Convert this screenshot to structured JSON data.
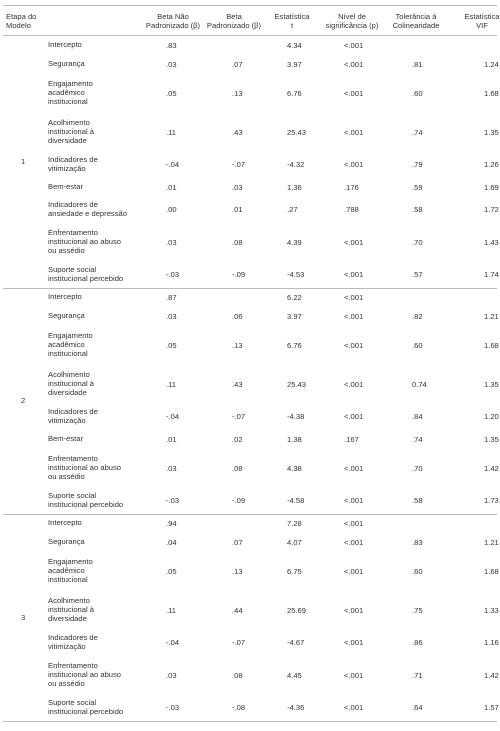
{
  "header": {
    "etapa": [
      "Etapa do",
      "Modelo"
    ],
    "beta_np": [
      "Beta Não",
      "Padronizado (β)"
    ],
    "beta_p": [
      "Beta",
      "Padronizado (β)"
    ],
    "t": [
      "Estatística",
      "t"
    ],
    "sig": [
      "Nível de",
      "significância (p)"
    ],
    "tol": [
      "Tolerância à",
      "Colinearidade"
    ],
    "vif": [
      "Estatística",
      "VIF"
    ]
  },
  "models": [
    {
      "label": "1",
      "rows": [
        {
          "variable": [
            "Intercepto"
          ],
          "cells": [
            ".83",
            null,
            "4.34",
            "<.001",
            null,
            null
          ]
        },
        {
          "variable": [
            "Segurança"
          ],
          "cells": [
            ".03",
            ".07",
            "3.97",
            "<.001",
            ".81",
            "1.24"
          ]
        },
        {
          "variable": [
            "Engajamento",
            "acadêmico",
            "institucional"
          ],
          "cells": [
            ".05",
            ".13",
            "6.76",
            "<.001",
            ".60",
            "1.68"
          ]
        },
        {
          "variable": [
            "Acolhimento",
            "institucional à",
            "diversidade"
          ],
          "cells": [
            ".11",
            ".43",
            "25.43",
            "<.001",
            ".74",
            "1.35"
          ]
        },
        {
          "variable": [
            "Indicadores de",
            "vitimização"
          ],
          "cells": [
            "-.04",
            "-.07",
            "-4.32",
            "<.001",
            ".79",
            "1.26"
          ]
        },
        {
          "variable": [
            "Bem-estar"
          ],
          "cells": [
            ".01",
            ".03",
            "1.36",
            ".176",
            ".59",
            "1.69"
          ]
        },
        {
          "variable": [
            "Indicadores de",
            "ansiedade e depressão"
          ],
          "cells": [
            ".00",
            ".01",
            ".27",
            ".788",
            ".58",
            "1.72"
          ]
        },
        {
          "variable": [
            "Enfrentamento",
            "institucional ao abuso",
            "ou assédio"
          ],
          "cells": [
            ".03",
            ".08",
            "4.39",
            "<.001",
            ".70",
            "1.43"
          ]
        },
        {
          "variable": [
            "Suporte social",
            "institucional percebido"
          ],
          "cells": [
            "-.03",
            "-.09",
            "-4.53",
            "<.001",
            ".57",
            "1.74"
          ]
        }
      ]
    },
    {
      "label": "2",
      "rows": [
        {
          "variable": [
            "Intercepto"
          ],
          "cells": [
            ".87",
            null,
            "6.22",
            "<.001",
            null,
            null
          ]
        },
        {
          "variable": [
            "Segurança"
          ],
          "cells": [
            ".03",
            ".06",
            "3.97",
            "<.001",
            ".82",
            "1.21"
          ]
        },
        {
          "variable": [
            "Engajamento",
            "acadêmico",
            "institucional"
          ],
          "cells": [
            ".05",
            ".13",
            "6.76",
            "<.001",
            ".60",
            "1.68"
          ]
        },
        {
          "variable": [
            "Acolhimento",
            "institucional à",
            "diversidade"
          ],
          "cells": [
            ".11",
            ".43",
            "25.43",
            "<.001",
            "0.74",
            "1.35"
          ]
        },
        {
          "variable": [
            "Indicadores de",
            "vitimização"
          ],
          "cells": [
            "-.04",
            "-.07",
            "-4.38",
            "<.001",
            ".84",
            "1.20"
          ]
        },
        {
          "variable": [
            "Bem-estar"
          ],
          "cells": [
            ".01",
            ".02",
            "1.38",
            ".167",
            ".74",
            "1.35"
          ]
        },
        {
          "variable": [
            "Enfrentamento",
            "institucional ao abuso",
            "ou assédio"
          ],
          "cells": [
            ".03",
            ".08",
            "4.38",
            "<.001",
            ".70",
            "1.42"
          ]
        },
        {
          "variable": [
            "Suporte social",
            "institucional percebido"
          ],
          "cells": [
            "-.03",
            "-.09",
            "-4.58",
            "<.001",
            ".58",
            "1.73"
          ]
        }
      ]
    },
    {
      "label": "3",
      "rows": [
        {
          "variable": [
            "Intercepto"
          ],
          "cells": [
            ".94",
            null,
            "7.28",
            "<.001",
            null,
            null
          ]
        },
        {
          "variable": [
            "Segurança"
          ],
          "cells": [
            ".04",
            ".07",
            "4.07",
            "<.001",
            ".83",
            "1.21"
          ]
        },
        {
          "variable": [
            "Engajamento",
            "acadêmico",
            "institucional"
          ],
          "cells": [
            ".05",
            ".13",
            "6.75",
            "<.001",
            ".60",
            "1.68"
          ]
        },
        {
          "variable": [
            "Acolhimento",
            "institucional à",
            "diversidade"
          ],
          "cells": [
            ".11",
            ".44",
            "25.69",
            "<.001",
            ".75",
            "1.33"
          ]
        },
        {
          "variable": [
            "Indicadores de",
            "vitimização"
          ],
          "cells": [
            "-.04",
            "-.07",
            "-4.67",
            "<.001",
            ".86",
            "1.16"
          ]
        },
        {
          "variable": [
            "Enfrentamento",
            "institucional ao abuso",
            "ou assédio"
          ],
          "cells": [
            ".03",
            ".08",
            "4.45",
            "<.001",
            ".71",
            "1.42"
          ]
        },
        {
          "variable": [
            "Suporte social",
            "institucional percebido"
          ],
          "cells": [
            "-.03",
            "-.08",
            "-4.36",
            "<.001",
            ".64",
            "1.57"
          ]
        }
      ]
    }
  ]
}
